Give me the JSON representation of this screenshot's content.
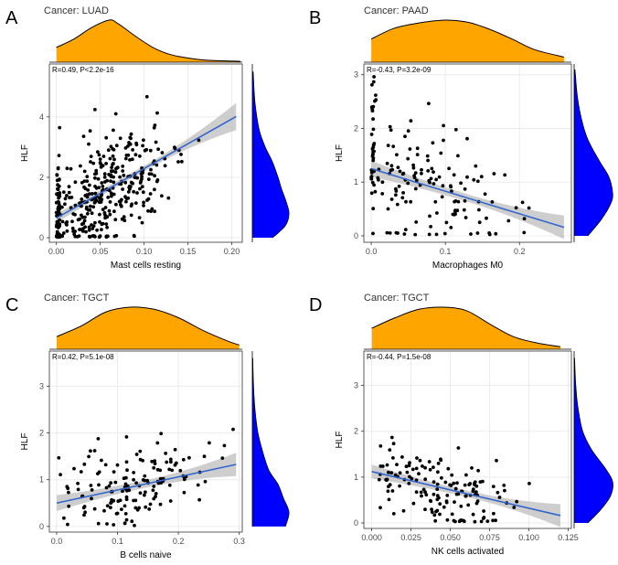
{
  "panels": [
    {
      "letter": "A",
      "title": "Cancer: LUAD",
      "xlabel": "Mast cells resting",
      "ylabel": "HLF",
      "stat": "R=0.49, P<2.2e-16",
      "xlim": [
        -0.008,
        0.212
      ],
      "ylim": [
        -0.15,
        5.75
      ],
      "xticks": [
        0.0,
        0.05,
        0.1,
        0.15,
        0.2
      ],
      "xtick_labels": [
        "0.00",
        "0.05",
        "0.10",
        "0.15",
        "0.20"
      ],
      "yticks": [
        0,
        2,
        4
      ],
      "ytick_labels": [
        "0",
        "2",
        "4"
      ],
      "fit": {
        "x0": 0.0,
        "x1": 0.205,
        "intercept": 0.65,
        "slope": 16.4,
        "band0": 0.15,
        "bandMid": 0.09,
        "band1": 0.45
      },
      "xdens": [
        [
          0.0,
          0.35
        ],
        [
          0.02,
          0.55
        ],
        [
          0.04,
          0.82
        ],
        [
          0.06,
          1.0
        ],
        [
          0.07,
          0.92
        ],
        [
          0.09,
          0.62
        ],
        [
          0.11,
          0.35
        ],
        [
          0.13,
          0.18
        ],
        [
          0.15,
          0.1
        ],
        [
          0.17,
          0.05
        ],
        [
          0.21,
          0.02
        ]
      ],
      "ydens": [
        [
          0.0,
          0.55
        ],
        [
          0.4,
          0.9
        ],
        [
          0.8,
          1.0
        ],
        [
          1.2,
          0.92
        ],
        [
          1.6,
          0.8
        ],
        [
          2.0,
          0.7
        ],
        [
          2.5,
          0.55
        ],
        [
          3.0,
          0.35
        ],
        [
          3.5,
          0.2
        ],
        [
          4.0,
          0.12
        ],
        [
          4.6,
          0.06
        ],
        [
          5.5,
          0.02
        ]
      ],
      "scatter": {
        "n": 400,
        "seed": 11,
        "type": "luad"
      }
    },
    {
      "letter": "B",
      "title": "Cancer: PAAD",
      "xlabel": "Macrophages M0",
      "ylabel": "HLF",
      "stat": "R=-0.43, P=3.2e-09",
      "xlim": [
        -0.01,
        0.27
      ],
      "ylim": [
        -0.12,
        3.2
      ],
      "xticks": [
        0.0,
        0.1,
        0.2
      ],
      "xtick_labels": [
        "0.0",
        "0.1",
        "0.2"
      ],
      "yticks": [
        0,
        1,
        2,
        3
      ],
      "ytick_labels": [
        "0",
        "1",
        "2",
        "3"
      ],
      "fit": {
        "x0": 0.0,
        "x1": 0.26,
        "intercept": 1.25,
        "slope": -4.2,
        "band0": 0.15,
        "bandMid": 0.07,
        "band1": 0.22
      },
      "xdens": [
        [
          0.0,
          0.55
        ],
        [
          0.03,
          0.8
        ],
        [
          0.06,
          0.92
        ],
        [
          0.1,
          1.0
        ],
        [
          0.13,
          0.95
        ],
        [
          0.16,
          0.78
        ],
        [
          0.19,
          0.55
        ],
        [
          0.22,
          0.3
        ],
        [
          0.26,
          0.12
        ]
      ],
      "ydens": [
        [
          0.0,
          0.35
        ],
        [
          0.3,
          0.7
        ],
        [
          0.6,
          0.95
        ],
        [
          0.8,
          1.0
        ],
        [
          1.1,
          0.9
        ],
        [
          1.4,
          0.65
        ],
        [
          1.8,
          0.35
        ],
        [
          2.2,
          0.18
        ],
        [
          2.6,
          0.08
        ],
        [
          3.1,
          0.02
        ]
      ],
      "scatter": {
        "n": 170,
        "seed": 23,
        "type": "paad"
      }
    },
    {
      "letter": "C",
      "title": "Cancer: TGCT",
      "xlabel": "B cells naive",
      "ylabel": "HLF",
      "stat": "R=0.42, P=5.1e-08",
      "xlim": [
        -0.012,
        0.305
      ],
      "ylim": [
        -0.12,
        3.75
      ],
      "xticks": [
        0.0,
        0.1,
        0.2,
        0.3
      ],
      "xtick_labels": [
        "0.0",
        "0.1",
        "0.2",
        "0.3"
      ],
      "yticks": [
        0,
        1,
        2,
        3
      ],
      "ytick_labels": [
        "0",
        "1",
        "2",
        "3"
      ],
      "fit": {
        "x0": 0.0,
        "x1": 0.295,
        "intercept": 0.5,
        "slope": 2.8,
        "band0": 0.17,
        "bandMid": 0.08,
        "band1": 0.25
      },
      "xdens": [
        [
          0.0,
          0.3
        ],
        [
          0.04,
          0.55
        ],
        [
          0.08,
          0.88
        ],
        [
          0.12,
          1.0
        ],
        [
          0.16,
          0.95
        ],
        [
          0.2,
          0.75
        ],
        [
          0.24,
          0.45
        ],
        [
          0.28,
          0.2
        ],
        [
          0.3,
          0.1
        ]
      ],
      "ydens": [
        [
          0.0,
          0.9
        ],
        [
          0.3,
          1.0
        ],
        [
          0.6,
          0.85
        ],
        [
          0.9,
          0.7
        ],
        [
          1.2,
          0.45
        ],
        [
          1.6,
          0.28
        ],
        [
          2.0,
          0.15
        ],
        [
          2.5,
          0.07
        ],
        [
          3.0,
          0.03
        ],
        [
          3.6,
          0.01
        ]
      ],
      "scatter": {
        "n": 150,
        "seed": 37,
        "type": "tgct1"
      }
    },
    {
      "letter": "D",
      "title": "Cancer: TGCT",
      "xlabel": "NK cells activated",
      "ylabel": "HLF",
      "stat": "R=-0.44, P=1.5e-08",
      "xlim": [
        -0.005,
        0.127
      ],
      "ylim": [
        -0.12,
        3.75
      ],
      "xticks": [
        0.0,
        0.025,
        0.05,
        0.075,
        0.1,
        0.125
      ],
      "xtick_labels": [
        "0.000",
        "0.025",
        "0.050",
        "0.075",
        "0.100",
        "0.125"
      ],
      "yticks": [
        0,
        1,
        2,
        3
      ],
      "ytick_labels": [
        "0",
        "1",
        "2",
        "3"
      ],
      "fit": {
        "x0": 0.0,
        "x1": 0.12,
        "intercept": 1.12,
        "slope": -8.0,
        "band0": 0.15,
        "bandMid": 0.07,
        "band1": 0.25
      },
      "xdens": [
        [
          0.0,
          0.5
        ],
        [
          0.015,
          0.75
        ],
        [
          0.03,
          0.95
        ],
        [
          0.045,
          1.0
        ],
        [
          0.06,
          0.92
        ],
        [
          0.075,
          0.6
        ],
        [
          0.09,
          0.3
        ],
        [
          0.105,
          0.15
        ],
        [
          0.12,
          0.06
        ]
      ],
      "ydens": [
        [
          0.0,
          0.35
        ],
        [
          0.3,
          0.7
        ],
        [
          0.6,
          0.95
        ],
        [
          0.9,
          1.0
        ],
        [
          1.2,
          0.8
        ],
        [
          1.6,
          0.45
        ],
        [
          2.0,
          0.22
        ],
        [
          2.5,
          0.1
        ],
        [
          3.0,
          0.04
        ],
        [
          3.6,
          0.01
        ]
      ],
      "scatter": {
        "n": 150,
        "seed": 53,
        "type": "tgct2"
      }
    }
  ],
  "colors": {
    "xdensity": "#FFA500",
    "ydensity": "#0000FF",
    "fit": "#3366CC",
    "band": "#BEBEBE",
    "point": "#000000",
    "grid": "#EBEBEB"
  },
  "chart_data": [
    {
      "type": "scatter",
      "title": "Cancer: LUAD",
      "xlabel": "Mast cells resting",
      "ylabel": "HLF",
      "annotation": "R=0.49, P<2.2e-16",
      "xlim": [
        0,
        0.21
      ],
      "ylim": [
        0,
        5.6
      ],
      "fit_line": {
        "slope": 16.4,
        "intercept": 0.65
      },
      "n_points_approx": 400
    },
    {
      "type": "scatter",
      "title": "Cancer: PAAD",
      "xlabel": "Macrophages M0",
      "ylabel": "HLF",
      "annotation": "R=-0.43, P=3.2e-09",
      "xlim": [
        0,
        0.26
      ],
      "ylim": [
        0,
        3.1
      ],
      "fit_line": {
        "slope": -4.2,
        "intercept": 1.25
      },
      "n_points_approx": 170
    },
    {
      "type": "scatter",
      "title": "Cancer: TGCT",
      "xlabel": "B cells naive",
      "ylabel": "HLF",
      "annotation": "R=0.42, P=5.1e-08",
      "xlim": [
        0,
        0.3
      ],
      "ylim": [
        0,
        3.6
      ],
      "fit_line": {
        "slope": 2.8,
        "intercept": 0.5
      },
      "n_points_approx": 150
    },
    {
      "type": "scatter",
      "title": "Cancer: TGCT",
      "xlabel": "NK cells activated",
      "ylabel": "HLF",
      "annotation": "R=-0.44, P=1.5e-08",
      "xlim": [
        0,
        0.125
      ],
      "ylim": [
        0,
        3.6
      ],
      "fit_line": {
        "slope": -8.0,
        "intercept": 1.12
      },
      "n_points_approx": 150
    }
  ]
}
